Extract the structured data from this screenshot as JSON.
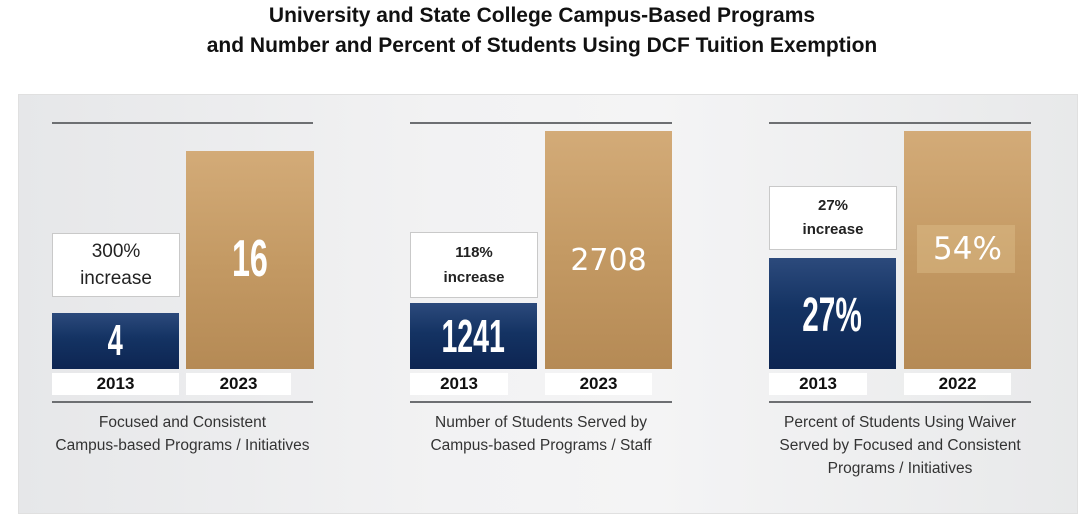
{
  "title": {
    "line1": "University and State College Campus-Based Programs",
    "line2": "and Number and Percent of Students Using DCF Tuition Exemption"
  },
  "chart_data": [
    {
      "type": "bar",
      "categories": [
        "2013",
        "2023"
      ],
      "values": [
        4,
        16
      ],
      "value_labels": [
        "4",
        "16"
      ],
      "annotation": [
        "300%",
        "increase"
      ],
      "caption": [
        "Focused and Consistent",
        "Campus-based Programs / Initiatives"
      ],
      "colors": [
        "#143363",
        "#c49a64"
      ]
    },
    {
      "type": "bar",
      "categories": [
        "2013",
        "2023"
      ],
      "values": [
        1241,
        2708
      ],
      "value_labels": [
        "1241",
        "2708"
      ],
      "annotation": [
        "118%",
        "increase"
      ],
      "caption": [
        "Number of Students Served by",
        "Campus-based Programs / Staff"
      ],
      "colors": [
        "#143363",
        "#c49a64"
      ]
    },
    {
      "type": "bar",
      "categories": [
        "2013",
        "2022"
      ],
      "values": [
        27,
        54
      ],
      "value_labels": [
        "27%",
        "54%"
      ],
      "annotation": [
        "27%",
        "increase"
      ],
      "caption": [
        "Percent of Students Using Waiver",
        "Served by Focused and Consistent",
        "Programs / Initiatives"
      ],
      "colors": [
        "#143363",
        "#c49a64"
      ]
    }
  ]
}
